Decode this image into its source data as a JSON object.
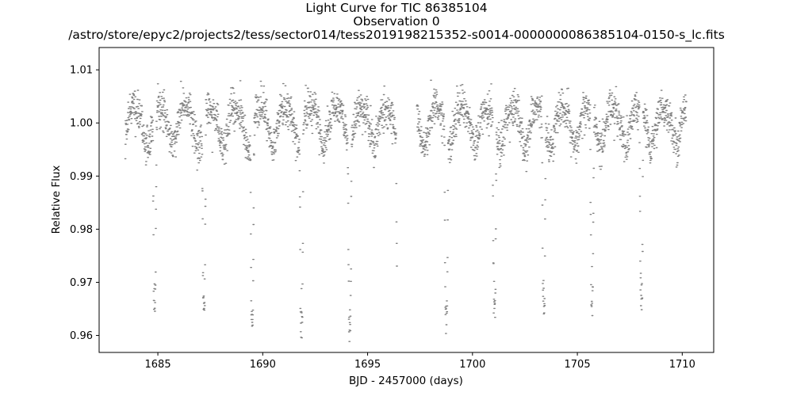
{
  "chart_data": {
    "type": "scatter",
    "title": "Light Curve for TIC 86385104",
    "subtitle": "Observation 0",
    "file_path": "/astro/store/epyc2/projects2/tess/sector014/tess2019198215352-s0014-0000000086385104-0150-s_lc.fits",
    "xlabel": "BJD - 2457000 (days)",
    "ylabel": "Relative Flux",
    "xlim": [
      1682.2,
      1711.5
    ],
    "ylim": [
      0.9568,
      1.0142
    ],
    "x_ticks": [
      1685,
      1690,
      1695,
      1700,
      1705,
      1710
    ],
    "y_ticks": [
      0.96,
      0.97,
      0.98,
      0.99,
      1.0,
      1.01
    ],
    "x_tick_labels": [
      "1685",
      "1690",
      "1695",
      "1700",
      "1705",
      "1710"
    ],
    "y_tick_labels": [
      "0.96",
      "0.97",
      "0.98",
      "0.99",
      "1.00",
      "1.01"
    ],
    "grid": false,
    "legend": "none",
    "marker_color": "#808080",
    "series": [
      {
        "segments": [
          [
            1683.45,
            1696.4
          ],
          [
            1697.35,
            1710.2
          ]
        ],
        "baseline_flux": 1.0,
        "variability_amplitude": 0.0035,
        "variability_period_days": 1.2,
        "scatter_sigma": 0.0018,
        "eclipse_depth_flux": 0.9655,
        "eclipse_times": [
          1684.85,
          1687.2,
          1689.5,
          1691.85,
          1694.15,
          1696.45,
          1698.75,
          1701.05,
          1703.4,
          1705.7,
          1708.05
        ],
        "eclipse_half_width_days": 0.09
      }
    ]
  }
}
